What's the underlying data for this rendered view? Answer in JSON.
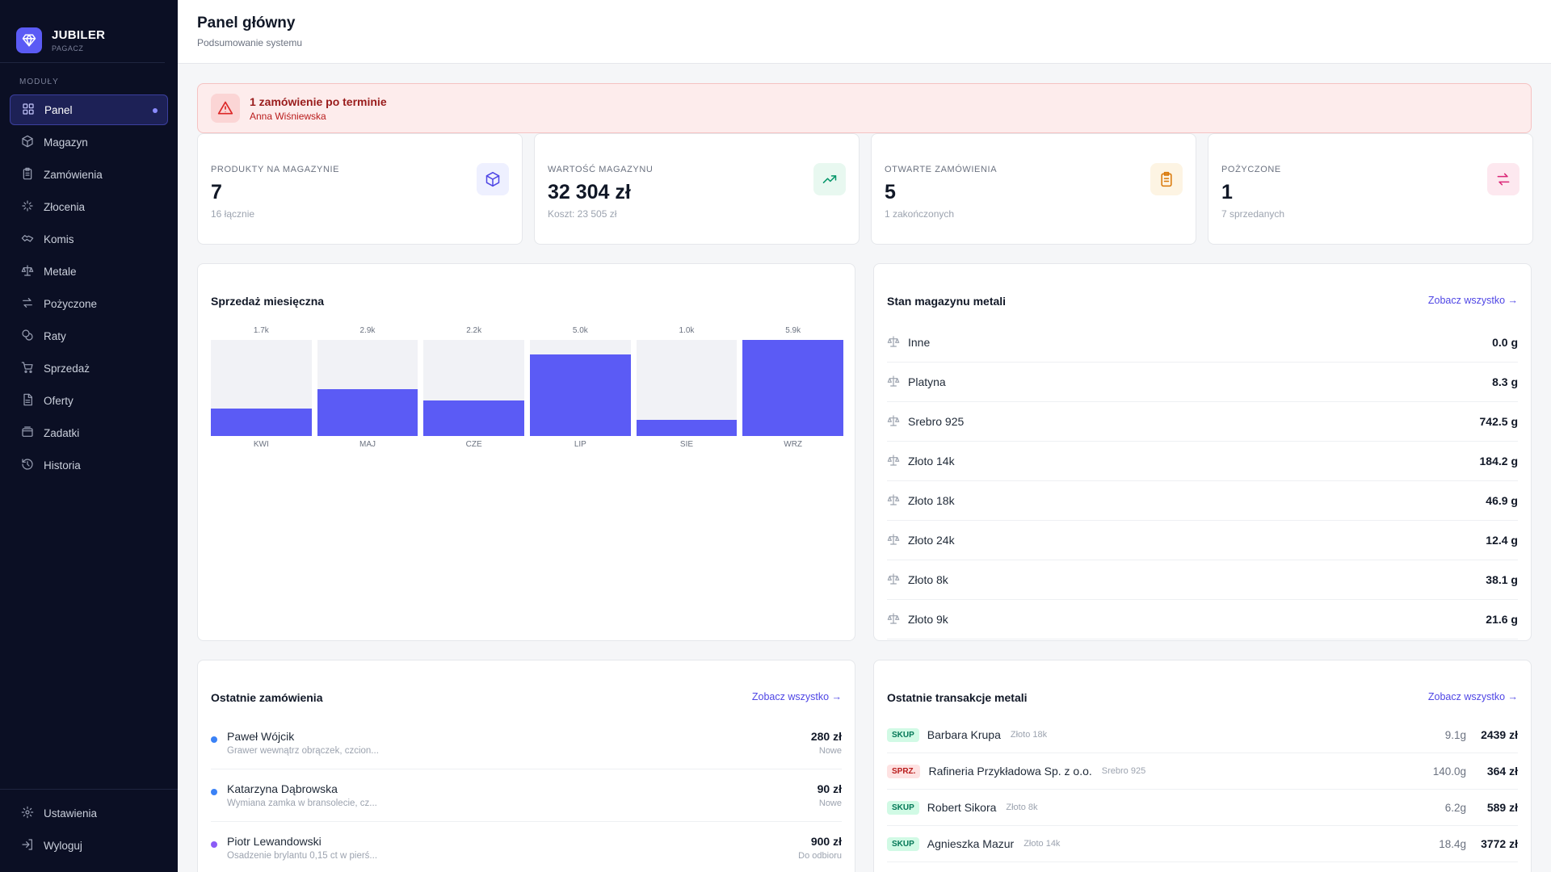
{
  "brand": {
    "name": "JUBILER",
    "sub": "PAGACZ"
  },
  "nav": {
    "heading": "MODUŁY",
    "items": [
      {
        "label": "Panel",
        "icon": "grid-icon",
        "active": true
      },
      {
        "label": "Magazyn",
        "icon": "package-icon"
      },
      {
        "label": "Zamówienia",
        "icon": "clipboard-icon"
      },
      {
        "label": "Złocenia",
        "icon": "sparkle-icon"
      },
      {
        "label": "Komis",
        "icon": "handshake-icon"
      },
      {
        "label": "Metale",
        "icon": "scale-icon"
      },
      {
        "label": "Pożyczone",
        "icon": "arrows-icon"
      },
      {
        "label": "Raty",
        "icon": "coins-icon"
      },
      {
        "label": "Sprzedaż",
        "icon": "cart-icon"
      },
      {
        "label": "Oferty",
        "icon": "document-icon"
      },
      {
        "label": "Zadatki",
        "icon": "wallet-icon"
      },
      {
        "label": "Historia",
        "icon": "history-icon"
      }
    ],
    "bottom": [
      {
        "label": "Ustawienia",
        "icon": "gear-icon"
      },
      {
        "label": "Wyloguj",
        "icon": "logout-icon"
      }
    ]
  },
  "header": {
    "title": "Panel główny",
    "subtitle": "Podsumowanie systemu"
  },
  "alert": {
    "title": "1 zamówienie po terminie",
    "subtitle": "Anna Wiśniewska"
  },
  "stats": [
    {
      "label": "PRODUKTY NA MAGAZYNIE",
      "value": "7",
      "sub": "16 łącznie",
      "icon": "box-icon",
      "color": "#4f46e5",
      "bg": "#eef0ff"
    },
    {
      "label": "WARTOŚĆ MAGAZYNU",
      "value": "32 304 zł",
      "sub": "Koszt: 23 505 zł",
      "icon": "trending-up-icon",
      "color": "#059669",
      "bg": "#e8f8f0"
    },
    {
      "label": "OTWARTE ZAMÓWIENIA",
      "value": "5",
      "sub": "1 zakończonych",
      "icon": "clipboard-icon",
      "color": "#d97706",
      "bg": "#fdf4e3"
    },
    {
      "label": "POŻYCZONE",
      "value": "1",
      "sub": "7 sprzedanych",
      "icon": "arrows-icon",
      "color": "#db2777",
      "bg": "#fde8ef"
    }
  ],
  "sales": {
    "title": "Sprzedaż miesięczna"
  },
  "chart_data": {
    "type": "bar",
    "title": "Sprzedaż miesięczna",
    "categories": [
      "KWI",
      "MAJ",
      "CZE",
      "LIP",
      "SIE",
      "WRZ"
    ],
    "values": [
      1700,
      2900,
      2200,
      5000,
      1000,
      5900
    ],
    "value_labels": [
      "1.7k",
      "2.9k",
      "2.2k",
      "5.0k",
      "1.0k",
      "5.9k"
    ],
    "ylim": [
      0,
      5900
    ],
    "bar_color": "#5b5bf5",
    "track_color": "#f1f2f6"
  },
  "metals": {
    "title": "Stan magazynu metali",
    "link": "Zobacz wszystko →",
    "rows": [
      {
        "name": "Inne",
        "value": "0.0 g"
      },
      {
        "name": "Platyna",
        "value": "8.3 g"
      },
      {
        "name": "Srebro 925",
        "value": "742.5 g"
      },
      {
        "name": "Złoto 14k",
        "value": "184.2 g"
      },
      {
        "name": "Złoto 18k",
        "value": "46.9 g"
      },
      {
        "name": "Złoto 24k",
        "value": "12.4 g"
      },
      {
        "name": "Złoto 8k",
        "value": "38.1 g"
      },
      {
        "name": "Złoto 9k",
        "value": "21.6 g"
      }
    ]
  },
  "orders": {
    "title": "Ostatnie zamówienia",
    "link": "Zobacz wszystko →",
    "rows": [
      {
        "name": "Paweł Wójcik",
        "desc": "Grawer wewnątrz obrączek, czcion...",
        "amount": "280 zł",
        "status": "Nowe",
        "dot": "#3b82f6"
      },
      {
        "name": "Katarzyna Dąbrowska",
        "desc": "Wymiana zamka w bransolecie, cz...",
        "amount": "90 zł",
        "status": "Nowe",
        "dot": "#3b82f6"
      },
      {
        "name": "Piotr Lewandowski",
        "desc": "Osadzenie brylantu 0,15 ct w pierś...",
        "amount": "900 zł",
        "status": "Do odbioru",
        "dot": "#8b5cf6"
      }
    ]
  },
  "transactions": {
    "title": "Ostatnie transakcje metali",
    "link": "Zobacz wszystko →",
    "rows": [
      {
        "badge": "SKUP",
        "name": "Barbara Krupa",
        "metal": "Złoto 18k",
        "weight": "9.1g",
        "price": "2439 zł",
        "badge_color": "#047857",
        "badge_bg": "#d1fae5"
      },
      {
        "badge": "SPRZ.",
        "name": "Rafineria Przykładowa Sp. z o.o.",
        "metal": "Srebro 925",
        "weight": "140.0g",
        "price": "364 zł",
        "badge_color": "#b91c1c",
        "badge_bg": "#fee2e2"
      },
      {
        "badge": "SKUP",
        "name": "Robert Sikora",
        "metal": "Złoto 8k",
        "weight": "6.2g",
        "price": "589 zł",
        "badge_color": "#047857",
        "badge_bg": "#d1fae5"
      },
      {
        "badge": "SKUP",
        "name": "Agnieszka Mazur",
        "metal": "Złoto 14k",
        "weight": "18.4g",
        "price": "3772 zł",
        "badge_color": "#047857",
        "badge_bg": "#d1fae5"
      }
    ]
  }
}
